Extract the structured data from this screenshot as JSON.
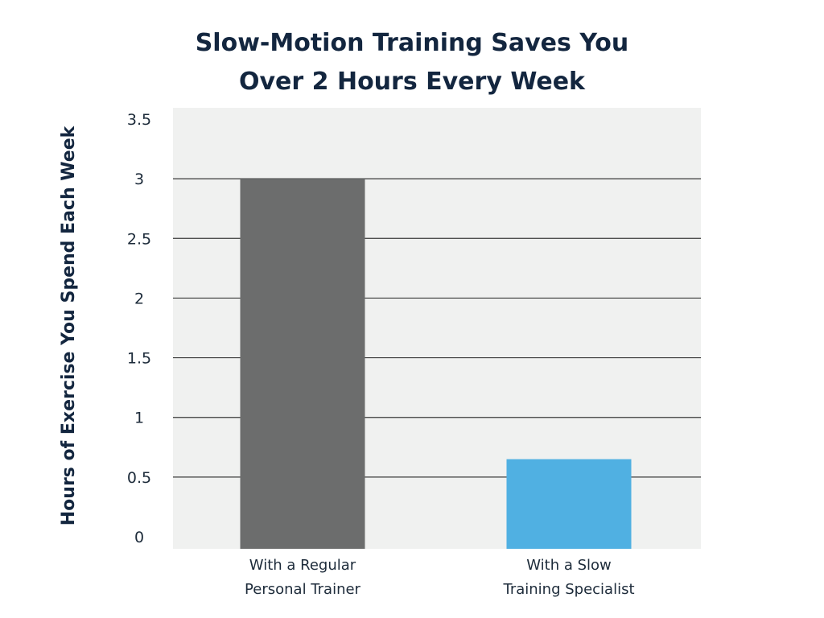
{
  "chart_data": {
    "type": "bar",
    "title": [
      "Slow-Motion Training Saves You",
      "Over 2 Hours Every Week"
    ],
    "xlabel": "",
    "ylabel": "Hours of Exercise You Spend Each Week",
    "ylim": [
      0,
      3.5
    ],
    "yticks": [
      {
        "value": 0,
        "label": "0"
      },
      {
        "value": 0.5,
        "label": "0.5"
      },
      {
        "value": 1,
        "label": "1"
      },
      {
        "value": 1.5,
        "label": "1.5"
      },
      {
        "value": 2,
        "label": "2"
      },
      {
        "value": 2.5,
        "label": "2.5"
      },
      {
        "value": 3,
        "label": "3"
      },
      {
        "value": 3.5,
        "label": "3.5"
      }
    ],
    "grid": true,
    "categories": [
      [
        "With a Regular",
        "Personal Trainer"
      ],
      [
        "With a Slow",
        "Training Specialist"
      ]
    ],
    "values": [
      3,
      0.65
    ],
    "colors": [
      "#6c6d6d",
      "#50b0e2"
    ],
    "plot_background": "#f0f1f0",
    "gridline_color": "#3a3a3a"
  }
}
